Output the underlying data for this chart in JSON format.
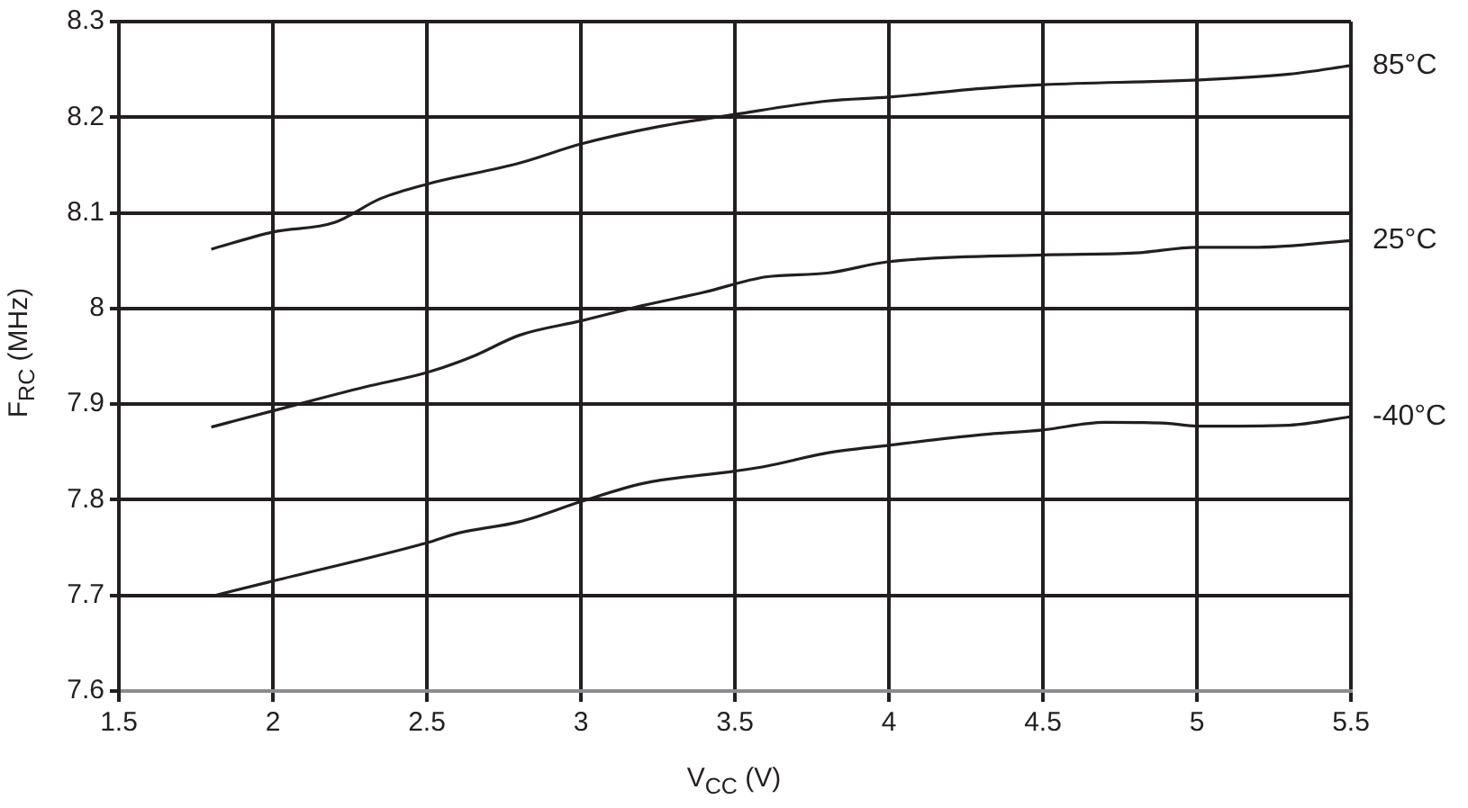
{
  "chart_data": {
    "type": "line",
    "xlabel": "V$_{CC}$ (V)",
    "ylabel": "F$_{RC}$ (MHz)",
    "xlim": [
      1.5,
      5.5
    ],
    "xticks": [
      1.5,
      2,
      2.5,
      3,
      3.5,
      4,
      4.5,
      5,
      5.5
    ],
    "ylim": [
      7.6,
      8.3
    ],
    "yticks": [
      7.6,
      7.7,
      7.8,
      7.9,
      8,
      8.1,
      8.2,
      8.3
    ],
    "grid": true,
    "legend": false,
    "marker": "none",
    "line_style": "solid",
    "series": [
      {
        "name": "85°C",
        "color": "#231f20",
        "x": [
          1.8,
          2.0,
          2.2,
          2.35,
          2.5,
          2.8,
          3.0,
          3.25,
          3.5,
          3.8,
          4.0,
          4.3,
          4.5,
          5.0,
          5.3,
          5.5
        ],
        "values": [
          8.062,
          8.08,
          8.09,
          8.115,
          8.13,
          8.152,
          8.172,
          8.19,
          8.203,
          8.217,
          8.221,
          8.23,
          8.234,
          8.239,
          8.245,
          8.254
        ]
      },
      {
        "name": "25°C",
        "color": "#231f20",
        "x": [
          1.8,
          2.0,
          2.3,
          2.5,
          2.65,
          2.8,
          3.0,
          3.2,
          3.4,
          3.6,
          3.8,
          4.0,
          4.5,
          4.8,
          5.0,
          5.2,
          5.5
        ],
        "values": [
          7.876,
          7.893,
          7.918,
          7.933,
          7.95,
          7.972,
          7.987,
          8.003,
          8.017,
          8.033,
          8.037,
          8.049,
          8.056,
          8.058,
          8.064,
          8.064,
          8.071
        ]
      },
      {
        "name": "-40°C",
        "color": "#231f20",
        "x": [
          1.8,
          2.0,
          2.5,
          2.6,
          2.8,
          3.0,
          3.2,
          3.5,
          3.6,
          3.8,
          4.0,
          4.3,
          4.5,
          4.7,
          4.9,
          5.0,
          5.3,
          5.5
        ],
        "values": [
          7.699,
          7.715,
          7.755,
          7.765,
          7.777,
          7.798,
          7.817,
          7.83,
          7.835,
          7.849,
          7.857,
          7.868,
          7.873,
          7.881,
          7.88,
          7.877,
          7.878,
          7.887
        ]
      }
    ]
  }
}
